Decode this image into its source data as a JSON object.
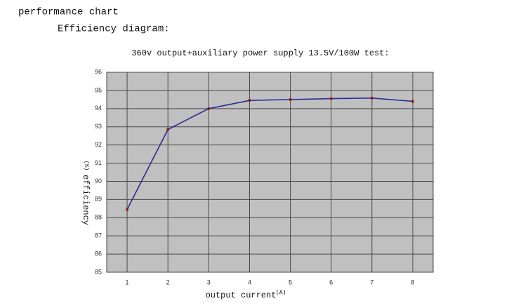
{
  "header": {
    "title": "performance chart",
    "subtitle": "Efficiency diagram:"
  },
  "chart_data": {
    "type": "line",
    "title": "360v output+auxiliary power supply 13.5V/100W test:",
    "x_label": "output current",
    "x_unit": "(A)",
    "y_label": "efficiency",
    "y_unit": "(%)",
    "x": [
      1,
      2,
      3,
      4,
      5,
      6,
      7,
      8
    ],
    "values": [
      88.45,
      92.85,
      94.0,
      94.45,
      94.5,
      94.55,
      94.58,
      94.4
    ],
    "color": "#2b2b96",
    "marker_color": "#8b1a1a",
    "xlim": [
      0.5,
      8.5
    ],
    "xticks": [
      1,
      2,
      3,
      4,
      5,
      6,
      7,
      8
    ],
    "ylim": [
      85,
      96
    ],
    "yticks": [
      85,
      86,
      87,
      88,
      89,
      90,
      91,
      92,
      93,
      94,
      95,
      96
    ],
    "grid": true,
    "background": "#c0c0c0"
  }
}
